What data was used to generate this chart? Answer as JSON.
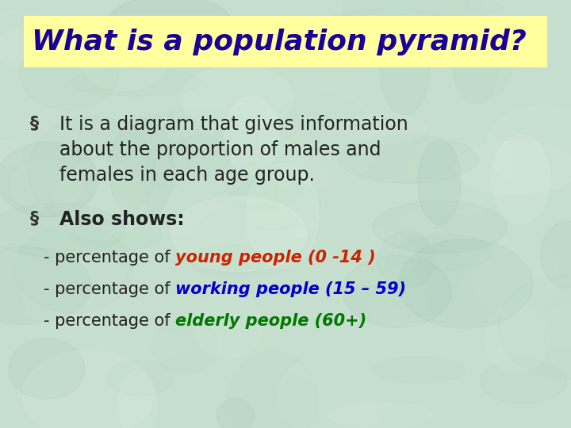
{
  "title": "What is a population pyramid?",
  "title_color": "#1a0099",
  "title_bg_color": "#FFFFA0",
  "bullet1_line1": "It is a diagram that gives information",
  "bullet1_line2": "about the proportion of males and",
  "bullet1_line3": "females in each age group.",
  "bullet2": "Also shows:",
  "sub1_prefix": "- percentage of ",
  "sub1_colored": "young people (0 -14 )",
  "sub1_color": "#CC2200",
  "sub2_prefix": "- percentage of ",
  "sub2_colored": "working people (15 – 59)",
  "sub2_color": "#0000CC",
  "sub3_prefix": "- percentage of ",
  "sub3_colored": "elderly people (60+)",
  "sub3_color": "#007700",
  "bullet_color": "#333333",
  "text_color": "#222222",
  "bg_color1": "#c5dece",
  "bg_color2": "#d8ede0",
  "title_fontsize": 26,
  "body_fontsize": 17,
  "sub_fontsize": 15
}
